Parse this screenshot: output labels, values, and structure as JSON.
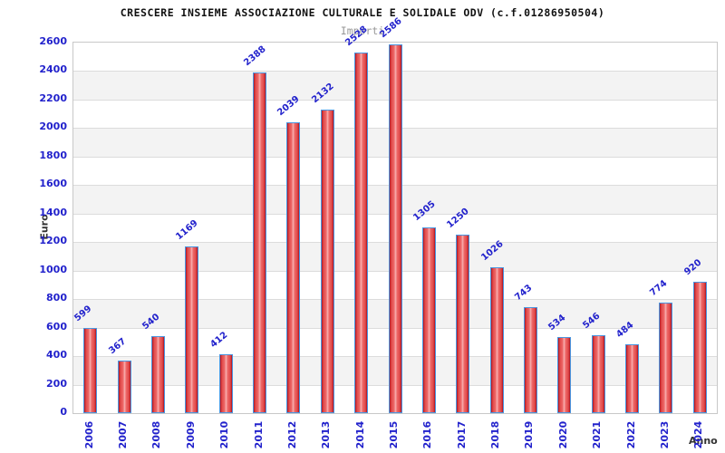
{
  "chart_data": {
    "type": "bar",
    "title": "CRESCERE INSIEME ASSOCIAZIONE CULTURALE E SOLIDALE ODV (c.f.01286950504)",
    "subtitle": "Importi",
    "xlabel": "Anno",
    "ylabel": "Euro",
    "categories": [
      "2006",
      "2007",
      "2008",
      "2009",
      "2010",
      "2011",
      "2012",
      "2013",
      "2014",
      "2015",
      "2016",
      "2017",
      "2018",
      "2019",
      "2020",
      "2021",
      "2022",
      "2023",
      "2024"
    ],
    "values": [
      599,
      367,
      540,
      1169,
      412,
      2388,
      2039,
      2132,
      2528,
      2586,
      1305,
      1250,
      1026,
      743,
      534,
      546,
      484,
      774,
      920
    ],
    "ylim": [
      0,
      2600
    ],
    "ytick_step": 200,
    "grid": true,
    "legend_position": "none",
    "value_labels_rotation_deg": -40,
    "xtick_rotation_deg": -90
  },
  "colors": {
    "title": "#111111",
    "subtitle": "#999999",
    "tick_label_blue": "#2222cc",
    "axis_title": "#333333",
    "plot_border": "#c8c8c8",
    "grid_line": "#dcdcdc",
    "band_gray": "#f3f3f3",
    "band_white": "#ffffff",
    "bar_border_blue": "#4a96e0",
    "bar_red_dark": "#ad1220",
    "bar_red_mid": "#e04848",
    "bar_red_light": "#f8b2b2"
  }
}
